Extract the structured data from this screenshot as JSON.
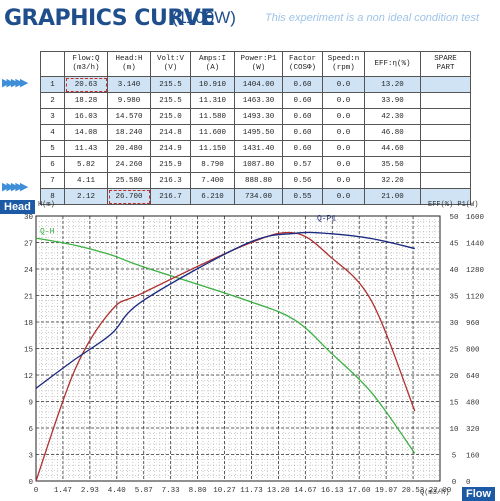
{
  "header": {
    "title": "GRAPHICS CURVE",
    "unit": "(1100W)",
    "note": "This experiment is a non ideal condition test"
  },
  "table": {
    "columns": [
      "",
      "Flow:Q (m3/h)",
      "Head:H (m)",
      "Volt:V (V)",
      "Amps:I (A)",
      "Power:P1 (W)",
      "Factor (COSΦ)",
      "Speed:n (rpm)",
      "EFF:η(%)",
      "SPARE PART"
    ],
    "rows": [
      [
        "1",
        "20.63",
        "3.140",
        "215.5",
        "10.910",
        "1404.00",
        "0.60",
        "0.0",
        "13.20",
        ""
      ],
      [
        "2",
        "18.28",
        "9.980",
        "215.5",
        "11.310",
        "1463.30",
        "0.60",
        "0.0",
        "33.90",
        ""
      ],
      [
        "3",
        "16.03",
        "14.570",
        "215.0",
        "11.580",
        "1493.30",
        "0.60",
        "0.0",
        "42.30",
        ""
      ],
      [
        "4",
        "14.08",
        "18.240",
        "214.8",
        "11.600",
        "1495.50",
        "0.60",
        "0.0",
        "46.80",
        ""
      ],
      [
        "5",
        "11.43",
        "20.480",
        "214.9",
        "11.150",
        "1431.40",
        "0.60",
        "0.0",
        "44.60",
        ""
      ],
      [
        "6",
        "5.82",
        "24.260",
        "215.9",
        "8.790",
        "1087.80",
        "0.57",
        "0.0",
        "35.50",
        ""
      ],
      [
        "7",
        "4.11",
        "25.580",
        "216.3",
        "7.400",
        "888.80",
        "0.56",
        "0.0",
        "32.20",
        ""
      ],
      [
        "8",
        "2.12",
        "26.700",
        "216.7",
        "6.210",
        "734.00",
        "0.55",
        "0.0",
        "21.00",
        ""
      ]
    ]
  },
  "tags": {
    "head": "Head",
    "flow": "Flow"
  },
  "axis_labels": {
    "left": "H(m)",
    "right": "EFF(%) P1(W)",
    "bottom": "Q(m3/h)"
  },
  "curve_labels": {
    "qh": "Q-H",
    "p1": "Q-P1"
  },
  "colors": {
    "title": "#1f4e8c",
    "qh": "#3cb043",
    "eff": "#b03030",
    "p1": "#1a2a80",
    "grid": "#444444"
  },
  "chart_data": {
    "type": "line",
    "x_ticks": [
      "0",
      "1.47",
      "2.93",
      "4.40",
      "5.87",
      "7.33",
      "8.80",
      "10.27",
      "11.73",
      "13.20",
      "14.67",
      "16.13",
      "17.60",
      "19.07",
      "20.53",
      "22.00"
    ],
    "left_ticks": [
      "0",
      "3",
      "6",
      "9",
      "12",
      "15",
      "18",
      "21",
      "24",
      "27",
      "30"
    ],
    "right_eff_ticks": [
      "0",
      "5",
      "10",
      "15",
      "20",
      "25",
      "30",
      "35",
      "40",
      "45",
      "50"
    ],
    "right_p1_ticks": [
      "0",
      "160",
      "320",
      "480",
      "640",
      "800",
      "960",
      "1120",
      "1280",
      "1440",
      "1600"
    ],
    "xlim": [
      0,
      22
    ],
    "ylim_head": [
      0,
      30
    ],
    "ylim_eff": [
      0,
      50
    ],
    "ylim_p1": [
      0,
      1600
    ],
    "series": [
      {
        "name": "Q-H",
        "axis": "head",
        "x": [
          0,
          2.12,
          4.11,
          5.82,
          11.43,
          14.08,
          16.03,
          18.28,
          20.63
        ],
        "y": [
          27.5,
          26.7,
          25.58,
          24.26,
          20.48,
          18.24,
          14.57,
          9.98,
          3.14
        ]
      },
      {
        "name": "",
        "axis": "eff",
        "x": [
          0,
          2.12,
          4.11,
          5.82,
          11.43,
          14.08,
          16.03,
          18.28,
          20.63
        ],
        "y": [
          0,
          21.0,
          32.2,
          35.5,
          44.6,
          46.8,
          42.3,
          33.9,
          13.2
        ]
      },
      {
        "name": "Q-P1",
        "axis": "p1",
        "x": [
          0,
          2.12,
          4.11,
          5.82,
          11.43,
          14.08,
          16.03,
          18.28,
          20.63
        ],
        "y": [
          560,
          734.0,
          888.8,
          1087.8,
          1431.4,
          1495.5,
          1493.3,
          1463.3,
          1404.0
        ]
      }
    ]
  }
}
